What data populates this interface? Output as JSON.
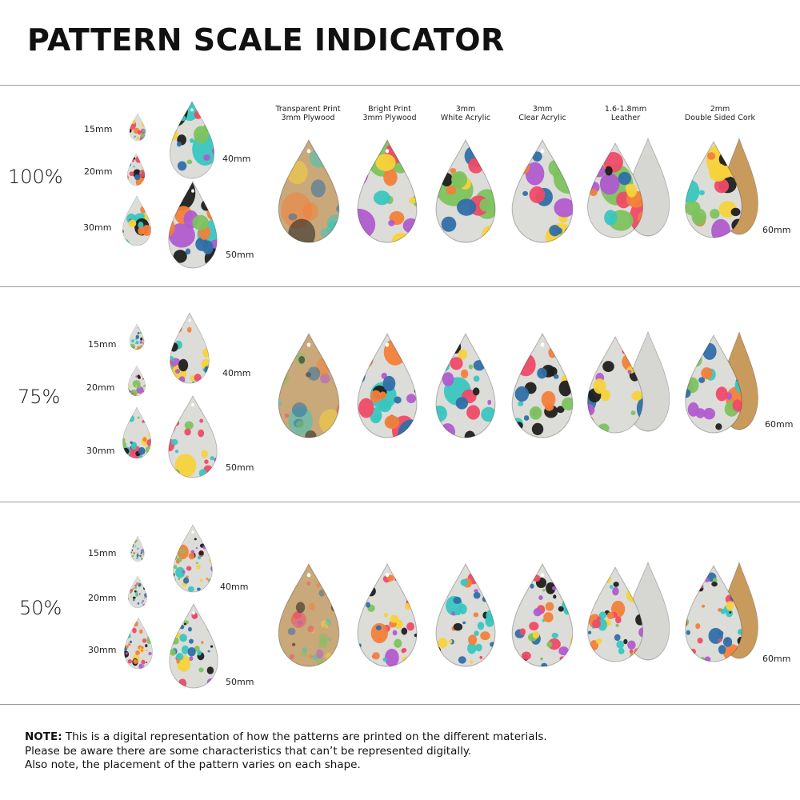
{
  "title": "PATTERN SCALE INDICATOR",
  "materials": [
    {
      "line1": "Transparent Print",
      "line2": "3mm Plywood"
    },
    {
      "line1": "Bright Print",
      "line2": "3mm Plywood"
    },
    {
      "line1": "3mm",
      "line2": "White Acrylic"
    },
    {
      "line1": "3mm",
      "line2": "Clear Acrylic"
    },
    {
      "line1": "1.6-1.8mm",
      "line2": "Leather"
    },
    {
      "line1": "2mm",
      "line2": "Double Sided Cork"
    }
  ],
  "sizes": {
    "s15": "15mm",
    "s20": "20mm",
    "s30": "30mm",
    "s40": "40mm",
    "s50": "50mm",
    "s60": "60mm"
  },
  "sections": [
    {
      "scale": "100%"
    },
    {
      "scale": "75%"
    },
    {
      "scale": "50%"
    }
  ],
  "note": {
    "label": "NOTE:",
    "line1": " This is a digital representation of how the patterns are printed on the different materials.",
    "line2": "Please be aware there are some characteristics that can’t be represented digitally.",
    "line3": "Also note, the placement of the pattern varies on each shape."
  },
  "colors": {
    "terrazzo_base": "#dcdcd8",
    "plywood": "#c9a87a",
    "cork": "#c89a5c",
    "suede": "#d6d6d2",
    "dots": [
      "#39c6c0",
      "#f7d23a",
      "#ef4a68",
      "#7dc25e",
      "#2f6fa8",
      "#b05bd0",
      "#f2803a",
      "#1f1f1f"
    ]
  }
}
